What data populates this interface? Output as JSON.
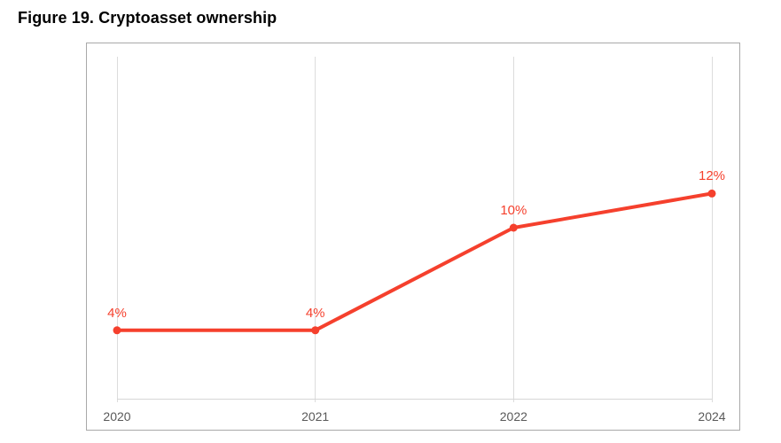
{
  "title": "Figure 19. Cryptoasset ownership",
  "chart_data": {
    "type": "line",
    "title": "Figure 19. Cryptoasset ownership",
    "categories": [
      "2020",
      "2021",
      "2022",
      "2024"
    ],
    "series": [
      {
        "name": "Cryptoasset ownership",
        "values": [
          4,
          4,
          10,
          12
        ],
        "labels": [
          "4%",
          "4%",
          "10%",
          "12%"
        ],
        "color": "#f5402d"
      }
    ],
    "xlabel": "",
    "ylabel": "",
    "ylim": [
      0,
      20
    ],
    "grid": "vertical-only",
    "legend": "none",
    "data_labels": "above-points",
    "colors": {
      "line": "#f5402d",
      "marker": "#f5402d",
      "data_label_text": "#f5402d",
      "grid_line": "#dcdcdc",
      "axis_line": "#d6d6d6",
      "tick_label_text": "#595959",
      "chart_border": "#a9a9a9",
      "background": "#ffffff"
    }
  }
}
